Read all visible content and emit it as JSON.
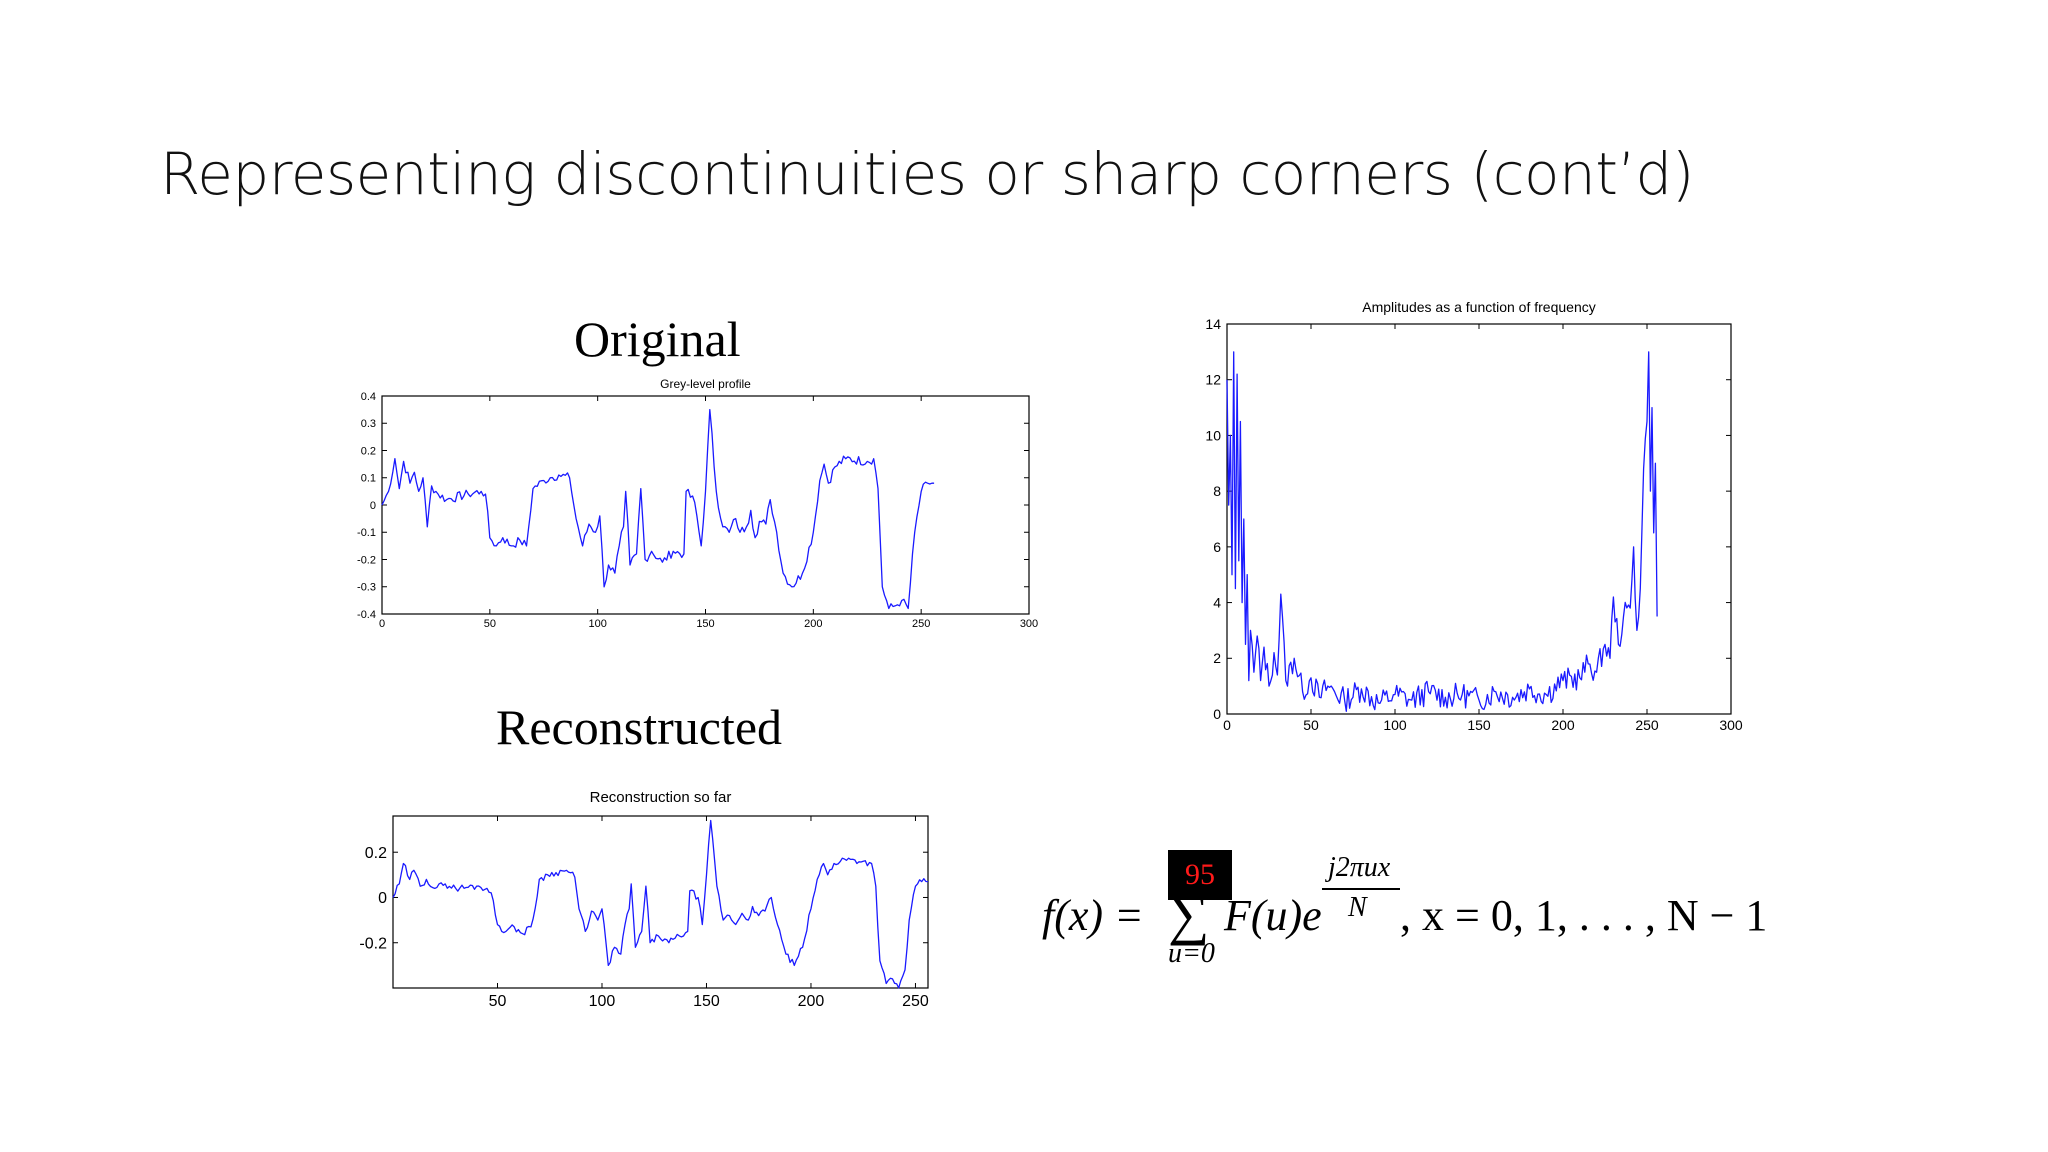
{
  "slide": {
    "title": "Representing discontinuities or sharp corners (cont’d)",
    "caption_original": "Original",
    "caption_reconstructed": "Reconstructed"
  },
  "formula": {
    "lhs": "f(x) =",
    "sum_symbol": "∑",
    "upper_limit": "95",
    "lower_limit": "u=0",
    "term": "F(u)e",
    "exp_numerator": "j2πux",
    "exp_denominator": "N",
    "tail": ", x = 0, 1, . . . , N − 1",
    "upper_limit_colors": {
      "background": "#000000",
      "text": "#ff1a1a"
    }
  },
  "chart_data": [
    {
      "id": "original",
      "type": "line",
      "title": "Grey-level profile",
      "xlabel": "",
      "ylabel": "",
      "xlim": [
        0,
        300
      ],
      "ylim": [
        -0.4,
        0.4
      ],
      "xticks": [
        "0",
        "50",
        "100",
        "150",
        "200",
        "250",
        "300"
      ],
      "yticks": [
        "-0.4",
        "-0.3",
        "-0.2",
        "-0.1",
        "0",
        "0.1",
        "0.2",
        "0.3",
        "0.4"
      ],
      "grid": false,
      "series_color": "#1a1aff",
      "keypoints": [
        [
          0,
          0.0
        ],
        [
          3,
          0.05
        ],
        [
          6,
          0.17
        ],
        [
          8,
          0.06
        ],
        [
          10,
          0.16
        ],
        [
          13,
          0.08
        ],
        [
          15,
          0.12
        ],
        [
          17,
          0.05
        ],
        [
          19,
          0.1
        ],
        [
          21,
          -0.08
        ],
        [
          23,
          0.07
        ],
        [
          26,
          0.04
        ],
        [
          30,
          0.02
        ],
        [
          40,
          0.04
        ],
        [
          46,
          0.05
        ],
        [
          48,
          0.04
        ],
        [
          50,
          -0.12
        ],
        [
          53,
          -0.15
        ],
        [
          56,
          -0.12
        ],
        [
          60,
          -0.15
        ],
        [
          64,
          -0.13
        ],
        [
          67,
          -0.15
        ],
        [
          70,
          0.06
        ],
        [
          75,
          0.09
        ],
        [
          78,
          0.1
        ],
        [
          82,
          0.11
        ],
        [
          87,
          0.1
        ],
        [
          90,
          -0.05
        ],
        [
          93,
          -0.15
        ],
        [
          96,
          -0.07
        ],
        [
          99,
          -0.1
        ],
        [
          101,
          -0.04
        ],
        [
          103,
          -0.3
        ],
        [
          105,
          -0.22
        ],
        [
          108,
          -0.25
        ],
        [
          110,
          -0.15
        ],
        [
          112,
          -0.08
        ],
        [
          113,
          0.05
        ],
        [
          115,
          -0.22
        ],
        [
          118,
          -0.18
        ],
        [
          120,
          0.06
        ],
        [
          122,
          -0.2
        ],
        [
          125,
          -0.17
        ],
        [
          130,
          -0.21
        ],
        [
          135,
          -0.17
        ],
        [
          140,
          -0.18
        ],
        [
          141,
          0.05
        ],
        [
          145,
          0.01
        ],
        [
          148,
          -0.15
        ],
        [
          150,
          0.05
        ],
        [
          152,
          0.35
        ],
        [
          155,
          0.05
        ],
        [
          158,
          -0.08
        ],
        [
          161,
          -0.1
        ],
        [
          164,
          -0.05
        ],
        [
          166,
          -0.1
        ],
        [
          169,
          -0.08
        ],
        [
          171,
          -0.02
        ],
        [
          173,
          -0.12
        ],
        [
          175,
          -0.06
        ],
        [
          178,
          -0.07
        ],
        [
          180,
          0.02
        ],
        [
          183,
          -0.1
        ],
        [
          186,
          -0.25
        ],
        [
          190,
          -0.3
        ],
        [
          195,
          -0.25
        ],
        [
          200,
          -0.1
        ],
        [
          203,
          0.09
        ],
        [
          205,
          0.15
        ],
        [
          207,
          0.08
        ],
        [
          210,
          0.14
        ],
        [
          215,
          0.17
        ],
        [
          225,
          0.16
        ],
        [
          228,
          0.17
        ],
        [
          230,
          0.06
        ],
        [
          232,
          -0.3
        ],
        [
          235,
          -0.38
        ],
        [
          238,
          -0.37
        ],
        [
          241,
          -0.35
        ],
        [
          244,
          -0.38
        ],
        [
          247,
          -0.1
        ],
        [
          250,
          0.05
        ],
        [
          253,
          0.08
        ],
        [
          256,
          0.08
        ]
      ]
    },
    {
      "id": "amplitude",
      "type": "line",
      "title": "Amplitudes as a function of frequency",
      "xlabel": "",
      "ylabel": "",
      "xlim": [
        0,
        300
      ],
      "ylim": [
        0,
        14
      ],
      "xticks": [
        "0",
        "50",
        "100",
        "150",
        "200",
        "250",
        "300"
      ],
      "yticks": [
        "0",
        "2",
        "4",
        "6",
        "8",
        "10",
        "12",
        "14"
      ],
      "grid": false,
      "series_color": "#1a1aff",
      "keypoints": [
        [
          0,
          12.0
        ],
        [
          1,
          7.5
        ],
        [
          2,
          10.0
        ],
        [
          3,
          5.0
        ],
        [
          4,
          13.0
        ],
        [
          5,
          4.5
        ],
        [
          6,
          12.2
        ],
        [
          7,
          5.5
        ],
        [
          8,
          10.5
        ],
        [
          9,
          4.0
        ],
        [
          10,
          7.0
        ],
        [
          11,
          2.5
        ],
        [
          12,
          5.0
        ],
        [
          13,
          1.2
        ],
        [
          14,
          3.0
        ],
        [
          16,
          1.5
        ],
        [
          18,
          2.8
        ],
        [
          20,
          1.2
        ],
        [
          22,
          2.4
        ],
        [
          25,
          1.0
        ],
        [
          28,
          2.2
        ],
        [
          30,
          1.4
        ],
        [
          32,
          4.3
        ],
        [
          35,
          1.2
        ],
        [
          40,
          2.0
        ],
        [
          45,
          0.8
        ],
        [
          50,
          1.3
        ],
        [
          55,
          0.6
        ],
        [
          60,
          1.0
        ],
        [
          70,
          0.5
        ],
        [
          80,
          0.9
        ],
        [
          90,
          0.4
        ],
        [
          100,
          0.7
        ],
        [
          110,
          0.5
        ],
        [
          120,
          0.8
        ],
        [
          130,
          0.6
        ],
        [
          140,
          0.7
        ],
        [
          150,
          0.5
        ],
        [
          160,
          0.8
        ],
        [
          170,
          0.6
        ],
        [
          180,
          0.9
        ],
        [
          190,
          0.7
        ],
        [
          200,
          1.2
        ],
        [
          210,
          1.3
        ],
        [
          215,
          1.8
        ],
        [
          220,
          1.5
        ],
        [
          225,
          2.5
        ],
        [
          228,
          2.0
        ],
        [
          230,
          4.2
        ],
        [
          233,
          2.5
        ],
        [
          236,
          3.5
        ],
        [
          240,
          3.8
        ],
        [
          242,
          6.0
        ],
        [
          244,
          3.0
        ],
        [
          246,
          4.5
        ],
        [
          248,
          8.8
        ],
        [
          250,
          10.5
        ],
        [
          251,
          13.0
        ],
        [
          252,
          8.0
        ],
        [
          253,
          11.0
        ],
        [
          254,
          6.5
        ],
        [
          255,
          9.0
        ],
        [
          256,
          3.5
        ]
      ]
    },
    {
      "id": "reconstruction",
      "type": "line",
      "title": "Reconstruction so far",
      "xlabel": "",
      "ylabel": "",
      "xlim": [
        0,
        256
      ],
      "ylim": [
        -0.4,
        0.36
      ],
      "xticks": [
        "50",
        "100",
        "150",
        "200",
        "250"
      ],
      "yticks": [
        "-0.2",
        "0",
        "0.2"
      ],
      "grid": false,
      "series_color": "#1a1aff",
      "keypoints": [
        [
          0,
          0.0
        ],
        [
          3,
          0.06
        ],
        [
          5,
          0.15
        ],
        [
          8,
          0.08
        ],
        [
          10,
          0.12
        ],
        [
          13,
          0.05
        ],
        [
          16,
          0.08
        ],
        [
          20,
          0.04
        ],
        [
          25,
          0.06
        ],
        [
          30,
          0.04
        ],
        [
          40,
          0.05
        ],
        [
          45,
          0.04
        ],
        [
          47,
          0.02
        ],
        [
          50,
          -0.12
        ],
        [
          54,
          -0.15
        ],
        [
          58,
          -0.13
        ],
        [
          62,
          -0.16
        ],
        [
          66,
          -0.13
        ],
        [
          68,
          -0.05
        ],
        [
          70,
          0.08
        ],
        [
          74,
          0.1
        ],
        [
          78,
          0.11
        ],
        [
          83,
          0.12
        ],
        [
          87,
          0.09
        ],
        [
          89,
          -0.05
        ],
        [
          92,
          -0.15
        ],
        [
          95,
          -0.06
        ],
        [
          98,
          -0.1
        ],
        [
          100,
          -0.05
        ],
        [
          103,
          -0.3
        ],
        [
          106,
          -0.22
        ],
        [
          109,
          -0.25
        ],
        [
          111,
          -0.12
        ],
        [
          113,
          -0.05
        ],
        [
          114,
          0.06
        ],
        [
          116,
          -0.22
        ],
        [
          119,
          -0.15
        ],
        [
          121,
          0.05
        ],
        [
          123,
          -0.2
        ],
        [
          127,
          -0.17
        ],
        [
          132,
          -0.2
        ],
        [
          137,
          -0.17
        ],
        [
          141,
          -0.15
        ],
        [
          142,
          0.03
        ],
        [
          146,
          0.0
        ],
        [
          148,
          -0.12
        ],
        [
          150,
          0.1
        ],
        [
          152,
          0.34
        ],
        [
          155,
          0.05
        ],
        [
          158,
          -0.1
        ],
        [
          161,
          -0.08
        ],
        [
          164,
          -0.12
        ],
        [
          167,
          -0.07
        ],
        [
          170,
          -0.1
        ],
        [
          172,
          -0.04
        ],
        [
          175,
          -0.08
        ],
        [
          178,
          -0.06
        ],
        [
          181,
          0.0
        ],
        [
          184,
          -0.12
        ],
        [
          188,
          -0.25
        ],
        [
          192,
          -0.3
        ],
        [
          196,
          -0.22
        ],
        [
          200,
          -0.05
        ],
        [
          203,
          0.08
        ],
        [
          206,
          0.15
        ],
        [
          208,
          0.1
        ],
        [
          211,
          0.15
        ],
        [
          216,
          0.17
        ],
        [
          225,
          0.16
        ],
        [
          229,
          0.15
        ],
        [
          231,
          0.05
        ],
        [
          233,
          -0.28
        ],
        [
          236,
          -0.38
        ],
        [
          239,
          -0.36
        ],
        [
          242,
          -0.4
        ],
        [
          245,
          -0.32
        ],
        [
          247,
          -0.1
        ],
        [
          250,
          0.05
        ],
        [
          253,
          0.07
        ],
        [
          256,
          0.07
        ]
      ]
    }
  ]
}
